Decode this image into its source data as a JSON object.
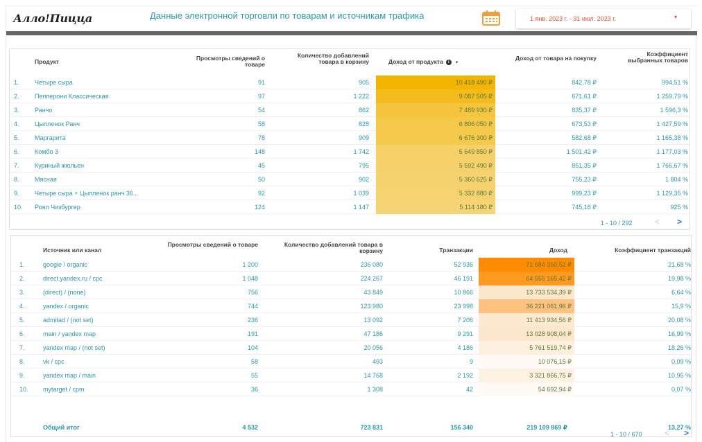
{
  "header": {
    "logo": "Алло!Пицца",
    "title": "Данные электронной торговли по товарам и источникам трафика",
    "date_range": "1 янв. 2023 г. - 31 июл. 2023 г.",
    "date_caret": "▾",
    "calendar_icon": "calendar-icon"
  },
  "products_table": {
    "columns": {
      "product": "Продукт",
      "views": "Просмотры сведений о товаре",
      "add_to_cart": "Количество добавлений товара в корзину",
      "revenue": "Доход от продукта",
      "revenue_per_purchase": "Доход от товара на покупку",
      "selection_rate": "Коэффициент выбранных товаров"
    },
    "info_icon": "i",
    "sort_caret": "▾",
    "heat_colors": [
      "#f4b400",
      "#f4bb1c",
      "#f5c53e",
      "#f5c84a",
      "#f5c94c",
      "#f6d16a",
      "#f6d16b",
      "#f6d26f",
      "#f6d370",
      "#f6d474"
    ],
    "rows": [
      {
        "idx": "1.",
        "product": "Четыре сыра",
        "views": "91",
        "add_to_cart": "905",
        "revenue": "10 418 490 ₽",
        "revenue_per_purchase": "842,78 ₽",
        "selection_rate": "994,51 %"
      },
      {
        "idx": "2.",
        "product": "Пепперони Классическая",
        "views": "97",
        "add_to_cart": "1 222",
        "revenue": "9 087 505 ₽",
        "revenue_per_purchase": "671,61 ₽",
        "selection_rate": "1 259,79 %"
      },
      {
        "idx": "3.",
        "product": "Ранчо",
        "views": "54",
        "add_to_cart": "862",
        "revenue": "7 489 930 ₽",
        "revenue_per_purchase": "835,37 ₽",
        "selection_rate": "1 596,3 %"
      },
      {
        "idx": "4.",
        "product": "Цыпленок Ранч",
        "views": "58",
        "add_to_cart": "828",
        "revenue": "6 806 050 ₽",
        "revenue_per_purchase": "673,53 ₽",
        "selection_rate": "1 427,59 %"
      },
      {
        "idx": "5.",
        "product": "Маргарита",
        "views": "78",
        "add_to_cart": "909",
        "revenue": "6 676 300 ₽",
        "revenue_per_purchase": "582,68 ₽",
        "selection_rate": "1 165,38 %"
      },
      {
        "idx": "6.",
        "product": "Комбо 3",
        "views": "148",
        "add_to_cart": "1 742",
        "revenue": "5 649 850 ₽",
        "revenue_per_purchase": "1 501,42 ₽",
        "selection_rate": "1 177,03 %"
      },
      {
        "idx": "7.",
        "product": "Куриный жюльен",
        "views": "45",
        "add_to_cart": "795",
        "revenue": "5 592 490 ₽",
        "revenue_per_purchase": "851,35 ₽",
        "selection_rate": "1 766,67 %"
      },
      {
        "idx": "8.",
        "product": "Мясная",
        "views": "50",
        "add_to_cart": "902",
        "revenue": "5 360 625 ₽",
        "revenue_per_purchase": "755,23 ₽",
        "selection_rate": "1 804 %"
      },
      {
        "idx": "9.",
        "product": "Четыре сыра + Цыпленок ранч 36...",
        "views": "92",
        "add_to_cart": "1 039",
        "revenue": "5 332 880 ₽",
        "revenue_per_purchase": "999,23 ₽",
        "selection_rate": "1 129,35 %"
      },
      {
        "idx": "10.",
        "product": "Роял Чизбургер",
        "views": "124",
        "add_to_cart": "1 147",
        "revenue": "5 114 180 ₽",
        "revenue_per_purchase": "745,18 ₽",
        "selection_rate": "925 %"
      }
    ],
    "pagination": "1 - 10 / 292",
    "prev": "<",
    "next": ">"
  },
  "sources_table": {
    "columns": {
      "source": "Источник или канал",
      "views": "Просмотры сведений о товаре",
      "add_to_cart": "Количество добавлений товара в корзину",
      "transactions": "Транзакции",
      "revenue": "Доход",
      "transaction_rate": "Коэффициент транзакций"
    },
    "heat_colors": [
      "#ff8c00",
      "#ff9a1f",
      "#fde7cc",
      "#fdc27f",
      "#fde9d0",
      "#fde7cc",
      "#fdf0df",
      "#fffaf5",
      "#fdf1e2",
      "#fffaf5"
    ],
    "rows": [
      {
        "idx": "1.",
        "source": "google / organic",
        "views": "1 200",
        "add_to_cart": "236 080",
        "transactions": "52 936",
        "revenue": "71 684 350,52 ₽",
        "transaction_rate": "21,68 %"
      },
      {
        "idx": "2.",
        "source": "direct.yandex.ru / cpc",
        "views": "1 048",
        "add_to_cart": "224 267",
        "transactions": "46 191",
        "revenue": "64 555 165,42 ₽",
        "transaction_rate": "19,98 %"
      },
      {
        "idx": "3.",
        "source": "(direct) / (none)",
        "views": "756",
        "add_to_cart": "43 849",
        "transactions": "10 866",
        "revenue": "13 733 534,39 ₽",
        "transaction_rate": "6,64 %"
      },
      {
        "idx": "4.",
        "source": "yandex / organic",
        "views": "744",
        "add_to_cart": "123 980",
        "transactions": "23 998",
        "revenue": "36 221 061,96 ₽",
        "transaction_rate": "15,9 %"
      },
      {
        "idx": "5.",
        "source": "admitad / (not set)",
        "views": "236",
        "add_to_cart": "13 092",
        "transactions": "7 206",
        "revenue": "11 413 934,56 ₽",
        "transaction_rate": "20,08 %"
      },
      {
        "idx": "6.",
        "source": "main / yandex map",
        "views": "191",
        "add_to_cart": "47 186",
        "transactions": "9 291",
        "revenue": "13 028 908,04 ₽",
        "transaction_rate": "16,99 %"
      },
      {
        "idx": "7.",
        "source": "yandex map / (not set)",
        "views": "104",
        "add_to_cart": "20 056",
        "transactions": "4 186",
        "revenue": "5 761 519,74 ₽",
        "transaction_rate": "18,26 %"
      },
      {
        "idx": "8.",
        "source": "vk / cpc",
        "views": "58",
        "add_to_cart": "493",
        "transactions": "9",
        "revenue": "10 076,15 ₽",
        "transaction_rate": "0,09 %"
      },
      {
        "idx": "9.",
        "source": "yandex map / main",
        "views": "55",
        "add_to_cart": "14 768",
        "transactions": "2 192",
        "revenue": "3 321 866,75 ₽",
        "transaction_rate": "10,95 %"
      },
      {
        "idx": "10.",
        "source": "mytarget / cpm",
        "views": "36",
        "add_to_cart": "1 308",
        "transactions": "42",
        "revenue": "54 692,94 ₽",
        "transaction_rate": "0,07 %"
      }
    ],
    "total": {
      "label": "Общий итог",
      "views": "4 532",
      "add_to_cart": "723 831",
      "transactions": "156 340",
      "revenue": "219 109 869 ₽",
      "transaction_rate": "13,27 %"
    },
    "pagination": "1 - 10 / 670",
    "prev": "<",
    "next": ">"
  }
}
